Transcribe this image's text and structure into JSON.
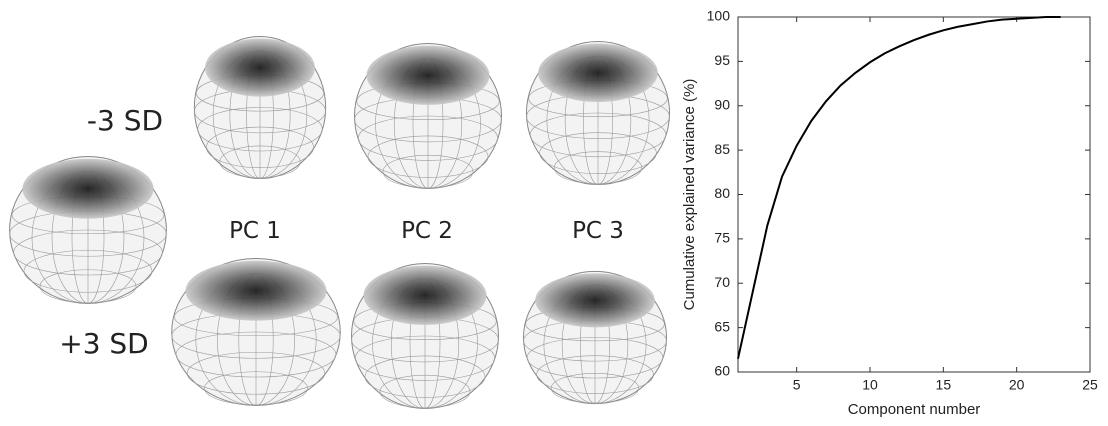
{
  "figure": {
    "row_labels": [
      "-3 SD",
      "+3 SD"
    ],
    "column_labels": [
      "PC 1",
      "PC 2",
      "PC 3"
    ]
  },
  "chart_data": {
    "type": "line",
    "x": [
      1,
      2,
      3,
      4,
      5,
      6,
      7,
      8,
      9,
      10,
      11,
      12,
      13,
      14,
      15,
      16,
      17,
      18,
      19,
      20,
      21,
      22,
      23
    ],
    "values": [
      61.5,
      69,
      76.5,
      82,
      85.5,
      88.3,
      90.5,
      92.3,
      93.7,
      94.9,
      95.9,
      96.7,
      97.4,
      98.0,
      98.5,
      98.9,
      99.2,
      99.5,
      99.7,
      99.8,
      99.9,
      100,
      100
    ],
    "color": "#000000",
    "xlabel": "Component number",
    "ylabel": "Cumulative explained variance (%)",
    "xlim": [
      1,
      25
    ],
    "xticks": [
      5,
      10,
      15,
      20,
      25
    ],
    "ylim": [
      60,
      100
    ],
    "yticks": [
      60,
      65,
      70,
      75,
      80,
      85,
      90,
      95,
      100
    ]
  }
}
